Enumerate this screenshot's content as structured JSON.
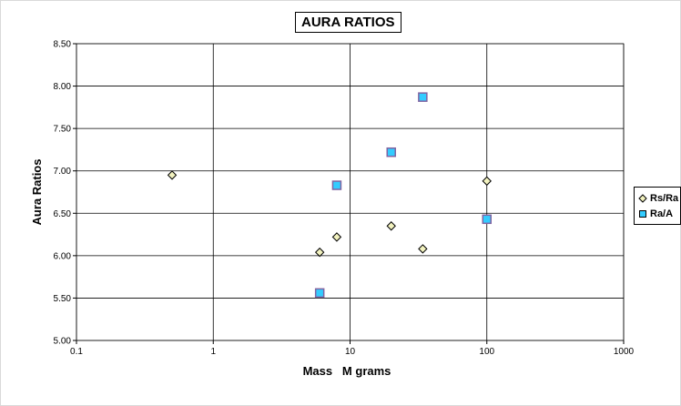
{
  "chart_data": {
    "type": "scatter",
    "title": "AURA RATIOS",
    "xlabel": "Mass   M grams",
    "ylabel": "Aura Ratios",
    "xscale": "log",
    "xlim": [
      0.1,
      1000
    ],
    "ylim": [
      5.0,
      8.5
    ],
    "x_ticks": [
      "0.1",
      "1",
      "10",
      "100",
      "1000"
    ],
    "y_ticks": [
      "5.00",
      "5.50",
      "6.00",
      "6.50",
      "7.00",
      "7.50",
      "8.00",
      "8.50"
    ],
    "grid": true,
    "legend_position": "right",
    "series": [
      {
        "name": "Rs/Ra",
        "marker": "diamond",
        "color": "#f2f2bf",
        "points": [
          {
            "x": 0.5,
            "y": 6.95
          },
          {
            "x": 6,
            "y": 6.04
          },
          {
            "x": 8,
            "y": 6.22
          },
          {
            "x": 20,
            "y": 6.35
          },
          {
            "x": 34,
            "y": 6.08
          },
          {
            "x": 100,
            "y": 6.88
          }
        ]
      },
      {
        "name": "Ra/A",
        "marker": "square",
        "color": "#33ccff",
        "edge": "#8064a2",
        "points": [
          {
            "x": 6,
            "y": 5.56
          },
          {
            "x": 8,
            "y": 6.83
          },
          {
            "x": 20,
            "y": 7.22
          },
          {
            "x": 34,
            "y": 7.87
          },
          {
            "x": 100,
            "y": 6.43
          }
        ]
      }
    ]
  }
}
